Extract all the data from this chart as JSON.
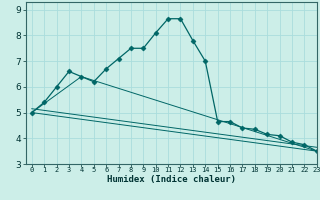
{
  "background_color": "#cceee8",
  "grid_color": "#aadddd",
  "line_color": "#006666",
  "xlabel": "Humidex (Indice chaleur)",
  "xlim": [
    -0.5,
    23
  ],
  "ylim": [
    3,
    9.3
  ],
  "xticks": [
    0,
    1,
    2,
    3,
    4,
    5,
    6,
    7,
    8,
    9,
    10,
    11,
    12,
    13,
    14,
    15,
    16,
    17,
    18,
    19,
    20,
    21,
    22,
    23
  ],
  "yticks": [
    3,
    4,
    5,
    6,
    7,
    8,
    9
  ],
  "series": [
    {
      "x": [
        0,
        1,
        2,
        3,
        4,
        5,
        6,
        7,
        8,
        9,
        10,
        11,
        12,
        13,
        14,
        15,
        16,
        17,
        18,
        19,
        20,
        21,
        22,
        23
      ],
      "y": [
        5.0,
        5.4,
        6.0,
        6.6,
        6.4,
        6.2,
        6.7,
        7.1,
        7.5,
        7.5,
        8.1,
        8.65,
        8.65,
        7.8,
        7.0,
        4.65,
        4.65,
        4.4,
        4.35,
        4.15,
        4.1,
        3.85,
        3.75,
        3.5
      ],
      "marker": "D",
      "markersize": 2.5
    },
    {
      "x": [
        0,
        4,
        23
      ],
      "y": [
        5.0,
        6.4,
        3.5
      ]
    },
    {
      "x": [
        0,
        23
      ],
      "y": [
        5.0,
        3.5
      ]
    },
    {
      "x": [
        0,
        23
      ],
      "y": [
        5.15,
        3.65
      ]
    }
  ]
}
